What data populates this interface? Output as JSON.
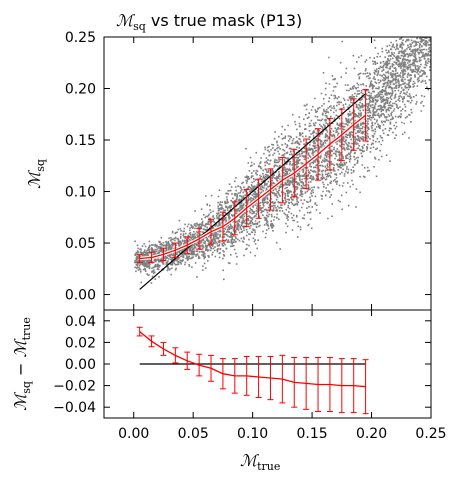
{
  "chart_data": {
    "type": "scatter",
    "title": "ℳsq vs true mask (P13)",
    "title_parts": {
      "symbol": "ℳ",
      "sub": "sq",
      "rest": " vs true mask (P13)"
    },
    "xlabel": {
      "symbol": "ℳ",
      "sub": "true"
    },
    "top_ylabel": {
      "symbol": "ℳ",
      "sub": "sq"
    },
    "bottom_ylabel": {
      "symbol1": "ℳ",
      "sub1": "sq",
      "minus": " − ",
      "symbol2": "ℳ",
      "sub2": "true"
    },
    "xlim": [
      -0.025,
      0.25
    ],
    "top_ylim": [
      -0.015,
      0.25
    ],
    "bottom_ylim": [
      -0.05,
      0.05
    ],
    "x_ticks": [
      "0.00",
      "0.05",
      "0.10",
      "0.15",
      "0.20",
      "0.25"
    ],
    "x_tick_values": [
      0.0,
      0.05,
      0.1,
      0.15,
      0.2,
      0.25
    ],
    "top_y_ticks": [
      "0.00",
      "0.05",
      "0.10",
      "0.15",
      "0.20",
      "0.25"
    ],
    "top_y_tick_values": [
      0.0,
      0.05,
      0.1,
      0.15,
      0.2,
      0.25
    ],
    "bottom_y_ticks": [
      "−0.04",
      "−0.02",
      "0.00",
      "0.02",
      "0.04"
    ],
    "bottom_y_tick_values": [
      -0.04,
      -0.02,
      0.0,
      0.02,
      0.04
    ],
    "scatter_color": "#808080",
    "binned_color": "#ff0000",
    "reference_color": "#000000",
    "identity_line": {
      "x": [
        0.005,
        0.195
      ],
      "y": [
        0.005,
        0.195
      ]
    },
    "binned_mean": {
      "x": [
        0.005,
        0.015,
        0.025,
        0.035,
        0.045,
        0.055,
        0.065,
        0.075,
        0.085,
        0.095,
        0.105,
        0.115,
        0.125,
        0.135,
        0.145,
        0.155,
        0.165,
        0.175,
        0.185,
        0.195
      ],
      "y": [
        0.035,
        0.036,
        0.039,
        0.043,
        0.048,
        0.054,
        0.061,
        0.066,
        0.074,
        0.084,
        0.093,
        0.102,
        0.111,
        0.118,
        0.127,
        0.136,
        0.146,
        0.155,
        0.165,
        0.174
      ],
      "yerr": [
        0.004,
        0.005,
        0.006,
        0.007,
        0.008,
        0.01,
        0.012,
        0.014,
        0.016,
        0.018,
        0.019,
        0.02,
        0.022,
        0.023,
        0.024,
        0.025,
        0.025,
        0.025,
        0.025,
        0.025
      ]
    },
    "residual": {
      "x": [
        0.005,
        0.015,
        0.025,
        0.035,
        0.045,
        0.055,
        0.065,
        0.075,
        0.085,
        0.095,
        0.105,
        0.115,
        0.125,
        0.135,
        0.145,
        0.155,
        0.165,
        0.175,
        0.185,
        0.195
      ],
      "y": [
        0.03,
        0.021,
        0.014,
        0.008,
        0.003,
        -0.001,
        -0.004,
        -0.009,
        -0.011,
        -0.011,
        -0.012,
        -0.013,
        -0.014,
        -0.017,
        -0.018,
        -0.019,
        -0.019,
        -0.02,
        -0.02,
        -0.021
      ],
      "yerr": [
        0.004,
        0.005,
        0.006,
        0.007,
        0.008,
        0.01,
        0.012,
        0.014,
        0.016,
        0.018,
        0.019,
        0.02,
        0.022,
        0.023,
        0.024,
        0.025,
        0.025,
        0.025,
        0.025,
        0.025
      ]
    },
    "zero_line": {
      "x": [
        0.005,
        0.195
      ],
      "y": [
        0.0,
        0.0
      ]
    },
    "grid": false,
    "legend": "none"
  }
}
